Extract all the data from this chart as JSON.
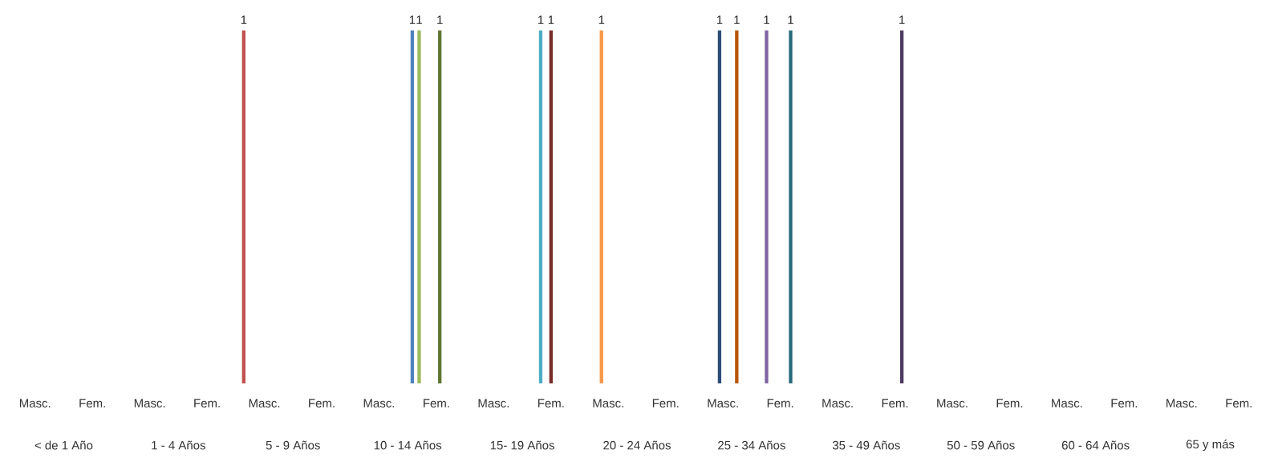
{
  "chart_data": {
    "type": "bar",
    "categories": [
      "Masc.",
      "Fem.",
      "Masc.",
      "Fem.",
      "Masc.",
      "Fem.",
      "Masc.",
      "Fem.",
      "Masc.",
      "Fem.",
      "Masc.",
      "Fem.",
      "Masc.",
      "Fem.",
      "Masc.",
      "Fem.",
      "Masc.",
      "Fem.",
      "Masc.",
      "Fem.",
      "Masc.",
      "Fem."
    ],
    "annotations": [
      "< de 1 Año",
      "1 - 4 Años",
      "5 - 9 Años",
      "10 - 14 Años",
      "15- 19 Años",
      "20 - 24 Años",
      "25 - 34 Años",
      "35 - 49 Años",
      "50 - 59 Años",
      "60 - 64 Años",
      "65 y más"
    ],
    "series": [
      {
        "color": "#4f81bd",
        "values": [
          0,
          0,
          0,
          0,
          0,
          0,
          0,
          1,
          0,
          0,
          0,
          0,
          0,
          0,
          0,
          0,
          0,
          0,
          0,
          0,
          0,
          0
        ],
        "value_labels": [
          null,
          null,
          null,
          null,
          null,
          null,
          null,
          "1",
          null,
          null,
          null,
          null,
          null,
          null,
          null,
          null,
          null,
          null,
          null,
          null,
          null,
          null
        ]
      },
      {
        "color": "#c0504d",
        "values": [
          0,
          0,
          0,
          0,
          1,
          0,
          0,
          0,
          0,
          0,
          0,
          0,
          0,
          0,
          0,
          0,
          0,
          0,
          0,
          0,
          0,
          0
        ],
        "value_labels": [
          null,
          null,
          null,
          null,
          "1",
          null,
          null,
          null,
          null,
          null,
          null,
          null,
          null,
          null,
          null,
          null,
          null,
          null,
          null,
          null,
          null,
          null
        ]
      },
      {
        "color": "#9bbb59",
        "values": [
          0,
          0,
          0,
          0,
          0,
          0,
          0,
          1,
          0,
          0,
          0,
          0,
          0,
          0,
          0,
          0,
          0,
          0,
          0,
          0,
          0,
          0
        ],
        "value_labels": [
          null,
          null,
          null,
          null,
          null,
          null,
          null,
          "1",
          null,
          null,
          null,
          null,
          null,
          null,
          null,
          null,
          null,
          null,
          null,
          null,
          null,
          null
        ]
      },
      {
        "color": "#8064a2",
        "values": [
          0,
          0,
          0,
          0,
          0,
          0,
          0,
          0,
          0,
          0,
          0,
          0,
          0,
          1,
          0,
          0,
          0,
          0,
          0,
          0,
          0,
          0
        ],
        "value_labels": [
          null,
          null,
          null,
          null,
          null,
          null,
          null,
          null,
          null,
          null,
          null,
          null,
          null,
          "1",
          null,
          null,
          null,
          null,
          null,
          null,
          null,
          null
        ]
      },
      {
        "color": "#4bacc6",
        "values": [
          0,
          0,
          0,
          0,
          0,
          0,
          0,
          0,
          0,
          1,
          0,
          0,
          0,
          0,
          0,
          0,
          0,
          0,
          0,
          0,
          0,
          0
        ],
        "value_labels": [
          null,
          null,
          null,
          null,
          null,
          null,
          null,
          null,
          null,
          "1",
          null,
          null,
          null,
          null,
          null,
          null,
          null,
          null,
          null,
          null,
          null,
          null
        ]
      },
      {
        "color": "#f79646",
        "values": [
          0,
          0,
          0,
          0,
          0,
          0,
          0,
          0,
          0,
          0,
          1,
          0,
          0,
          0,
          0,
          0,
          0,
          0,
          0,
          0,
          0,
          0
        ],
        "value_labels": [
          null,
          null,
          null,
          null,
          null,
          null,
          null,
          null,
          null,
          null,
          "1",
          null,
          null,
          null,
          null,
          null,
          null,
          null,
          null,
          null,
          null,
          null
        ]
      },
      {
        "color": "#2c4d75",
        "values": [
          0,
          0,
          0,
          0,
          0,
          0,
          0,
          0,
          0,
          0,
          0,
          0,
          1,
          0,
          0,
          0,
          0,
          0,
          0,
          0,
          0,
          0
        ],
        "value_labels": [
          null,
          null,
          null,
          null,
          null,
          null,
          null,
          null,
          null,
          null,
          null,
          null,
          "1",
          null,
          null,
          null,
          null,
          null,
          null,
          null,
          null,
          null
        ]
      },
      {
        "color": "#772c2a",
        "values": [
          0,
          0,
          0,
          0,
          0,
          0,
          0,
          0,
          0,
          1,
          0,
          0,
          0,
          0,
          0,
          0,
          0,
          0,
          0,
          0,
          0,
          0
        ],
        "value_labels": [
          null,
          null,
          null,
          null,
          null,
          null,
          null,
          null,
          null,
          "1",
          null,
          null,
          null,
          null,
          null,
          null,
          null,
          null,
          null,
          null,
          null,
          null
        ]
      },
      {
        "color": "#5f7530",
        "values": [
          0,
          0,
          0,
          0,
          0,
          0,
          0,
          1,
          0,
          0,
          0,
          0,
          0,
          0,
          0,
          0,
          0,
          0,
          0,
          0,
          0,
          0
        ],
        "value_labels": [
          null,
          null,
          null,
          null,
          null,
          null,
          null,
          "1",
          null,
          null,
          null,
          null,
          null,
          null,
          null,
          null,
          null,
          null,
          null,
          null,
          null,
          null
        ]
      },
      {
        "color": "#4d3b62",
        "values": [
          0,
          0,
          0,
          0,
          0,
          0,
          0,
          0,
          0,
          0,
          0,
          0,
          0,
          0,
          0,
          1,
          0,
          0,
          0,
          0,
          0,
          0
        ],
        "value_labels": [
          null,
          null,
          null,
          null,
          null,
          null,
          null,
          null,
          null,
          null,
          null,
          null,
          null,
          null,
          null,
          "1",
          null,
          null,
          null,
          null,
          null,
          null
        ]
      },
      {
        "color": "#276a7c",
        "values": [
          0,
          0,
          0,
          0,
          0,
          0,
          0,
          0,
          0,
          0,
          0,
          0,
          0,
          1,
          0,
          0,
          0,
          0,
          0,
          0,
          0,
          0
        ],
        "value_labels": [
          null,
          null,
          null,
          null,
          null,
          null,
          null,
          null,
          null,
          null,
          null,
          null,
          null,
          "1",
          null,
          null,
          null,
          null,
          null,
          null,
          null,
          null
        ]
      },
      {
        "color": "#b65708",
        "values": [
          0,
          0,
          0,
          0,
          0,
          0,
          0,
          0,
          0,
          0,
          0,
          0,
          1,
          0,
          0,
          0,
          0,
          0,
          0,
          0,
          0,
          0
        ],
        "value_labels": [
          null,
          null,
          null,
          null,
          null,
          null,
          null,
          null,
          null,
          null,
          null,
          null,
          "1",
          null,
          null,
          null,
          null,
          null,
          null,
          null,
          null,
          null
        ]
      },
      {
        "color": "#729aca",
        "values": [
          0,
          0,
          0,
          0,
          0,
          0,
          0,
          0,
          0,
          0,
          0,
          0,
          0,
          0,
          0,
          0,
          0,
          0,
          0,
          0,
          0,
          0
        ]
      },
      {
        "color": "#cd7371",
        "values": [
          0,
          0,
          0,
          0,
          0,
          0,
          0,
          0,
          0,
          0,
          0,
          0,
          0,
          0,
          0,
          0,
          0,
          0,
          0,
          0,
          0,
          0
        ]
      },
      {
        "color": "#afc97a",
        "values": [
          0,
          0,
          0,
          0,
          0,
          0,
          0,
          0,
          0,
          0,
          0,
          0,
          0,
          0,
          0,
          0,
          0,
          0,
          0,
          0,
          0,
          0
        ]
      }
    ],
    "ylim": [
      0,
      1
    ],
    "tick_labels": "x"
  }
}
